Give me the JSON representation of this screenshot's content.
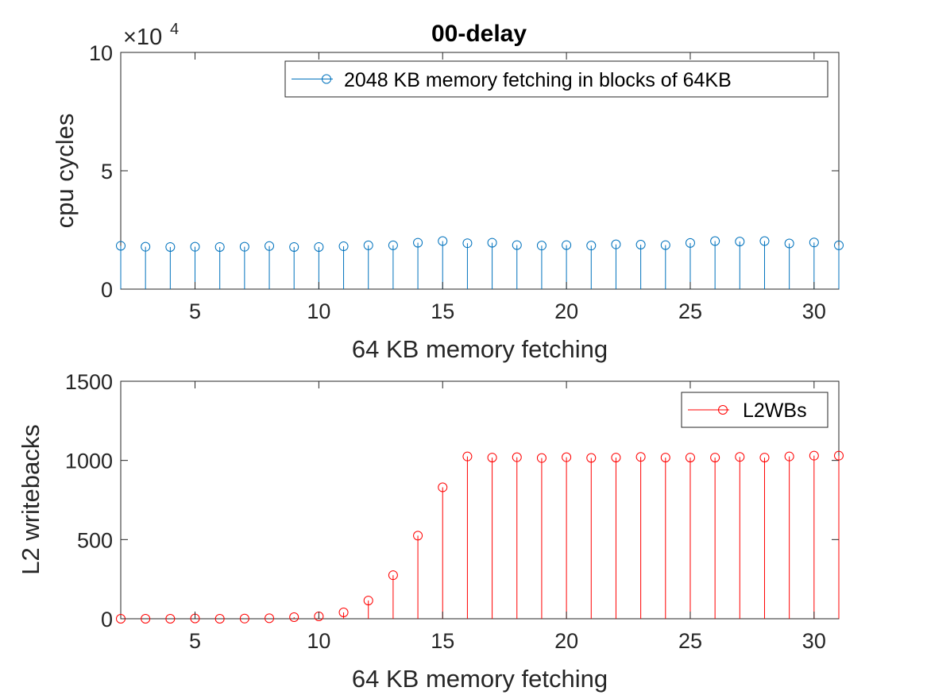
{
  "figure_title": "00-delay",
  "chart_data": [
    {
      "type": "stem",
      "title": "00-delay",
      "xlabel": "64 KB memory fetching",
      "ylabel": "cpu cycles",
      "xlim": [
        2,
        31
      ],
      "ylim": [
        0,
        100000
      ],
      "xticks": [
        5,
        10,
        15,
        20,
        25,
        30
      ],
      "yticks": [
        0,
        50000,
        100000
      ],
      "ytick_labels": [
        "0",
        "5",
        "10"
      ],
      "exponent_label": {
        "base": "×10",
        "power": "4"
      },
      "grid": false,
      "legend_position": "top-right",
      "series": [
        {
          "name": "2048 KB memory fetching in blocks of 64KB",
          "color": "#0072BD",
          "x": [
            2,
            3,
            4,
            5,
            6,
            7,
            8,
            9,
            10,
            11,
            12,
            13,
            14,
            15,
            16,
            17,
            18,
            19,
            20,
            21,
            22,
            23,
            24,
            25,
            26,
            27,
            28,
            29,
            30,
            31
          ],
          "values": [
            18300,
            17900,
            17800,
            17900,
            17800,
            17900,
            18200,
            17800,
            17800,
            18100,
            18500,
            18500,
            19600,
            20300,
            19400,
            19600,
            18600,
            18400,
            18600,
            18400,
            18900,
            18800,
            18600,
            19500,
            20300,
            20100,
            20300,
            19300,
            19700,
            18500
          ]
        }
      ]
    },
    {
      "type": "stem",
      "title": "",
      "xlabel": "64 KB memory fetching",
      "ylabel": "L2 writebacks",
      "xlim": [
        2,
        31
      ],
      "ylim": [
        0,
        1500
      ],
      "xticks": [
        5,
        10,
        15,
        20,
        25,
        30
      ],
      "yticks": [
        0,
        500,
        1000,
        1500
      ],
      "ytick_labels": [
        "0",
        "500",
        "1000",
        "1500"
      ],
      "grid": false,
      "legend_position": "top-right",
      "series": [
        {
          "name": "L2WBs",
          "color": "#FF0000",
          "x": [
            2,
            3,
            4,
            5,
            6,
            7,
            8,
            9,
            10,
            11,
            12,
            13,
            14,
            15,
            16,
            17,
            18,
            19,
            20,
            21,
            22,
            23,
            24,
            25,
            26,
            27,
            28,
            29,
            30,
            31
          ],
          "values": [
            0,
            0,
            0,
            2,
            0,
            1,
            3,
            10,
            15,
            40,
            115,
            275,
            525,
            830,
            1025,
            1018,
            1020,
            1015,
            1020,
            1016,
            1018,
            1022,
            1018,
            1018,
            1018,
            1022,
            1018,
            1025,
            1030,
            1030
          ]
        }
      ]
    }
  ]
}
